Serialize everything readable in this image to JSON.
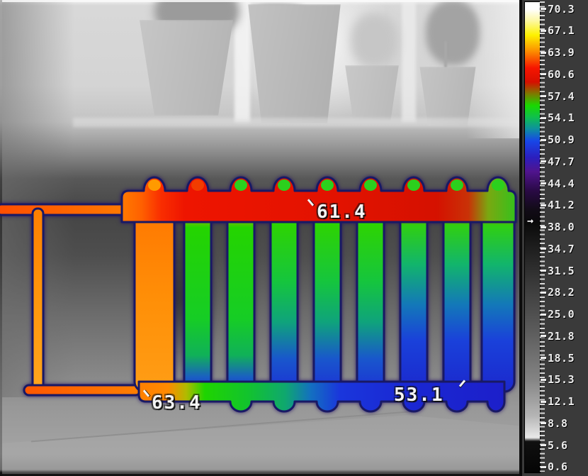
{
  "readings": {
    "spot1": "61.4",
    "spot2": "63.4",
    "spot3": "53.1"
  },
  "scale": {
    "tick_labels": [
      "70.3",
      "67.1",
      "63.9",
      "60.6",
      "57.4",
      "54.1",
      "50.9",
      "47.7",
      "44.4",
      "41.2",
      "38.0",
      "34.7",
      "31.5",
      "28.2",
      "25.0",
      "21.8",
      "18.5",
      "15.3",
      "12.1",
      "8.8",
      "5.6",
      "0.6"
    ],
    "pointer_glyph": "→"
  },
  "palette": {
    "hottest": "#ffffff",
    "hot_red": "#f61500",
    "warm_orange": "#ff8a00",
    "mid_green": "#19d800",
    "cool_blue": "#1747e8",
    "cold_black": "#0a0a0a",
    "thermal_outline": "#191965",
    "panel_background": "#3a3a3a",
    "overlay_text": "#f2f2f2"
  }
}
